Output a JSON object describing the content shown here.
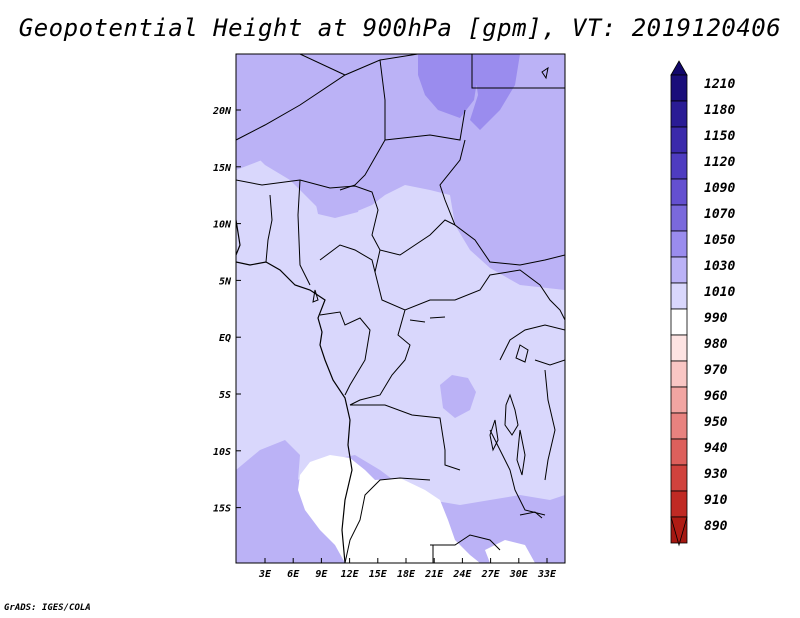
{
  "title": "Geopotential Height at 900hPa [gpm], VT: 2019120406",
  "credit": "GrADS: IGES/COLA",
  "lon_ticks": [
    "3E",
    "6E",
    "9E",
    "12E",
    "15E",
    "18E",
    "21E",
    "24E",
    "27E",
    "30E",
    "33E"
  ],
  "lat_ticks": [
    "20N",
    "15N",
    "10N",
    "5N",
    "EQ",
    "5S",
    "10S",
    "15S"
  ],
  "colorbar": {
    "levels": [
      "1210",
      "1180",
      "1150",
      "1120",
      "1090",
      "1070",
      "1050",
      "1030",
      "1010",
      "990",
      "980",
      "970",
      "960",
      "950",
      "940",
      "930",
      "910",
      "890"
    ],
    "colors": [
      "#1a0e7a",
      "#2a1c95",
      "#3b2aab",
      "#4e3cc0",
      "#6450d0",
      "#7a69dc",
      "#9a8cee",
      "#bbb2f6",
      "#d9d7fc",
      "#ffffff",
      "#fde3e2",
      "#f9c6c4",
      "#f2a5a2",
      "#e8827f",
      "#dd605c",
      "#d0423d",
      "#c02a24",
      "#a51812"
    ],
    "top_arrow_color": "#12086b",
    "bottom_arrow_color": "#b01c14"
  },
  "field_colors": {
    "base": "#d9d7fc",
    "mid": "#bbb2f6",
    "high": "#9a8cee",
    "low": "#ffffff"
  }
}
